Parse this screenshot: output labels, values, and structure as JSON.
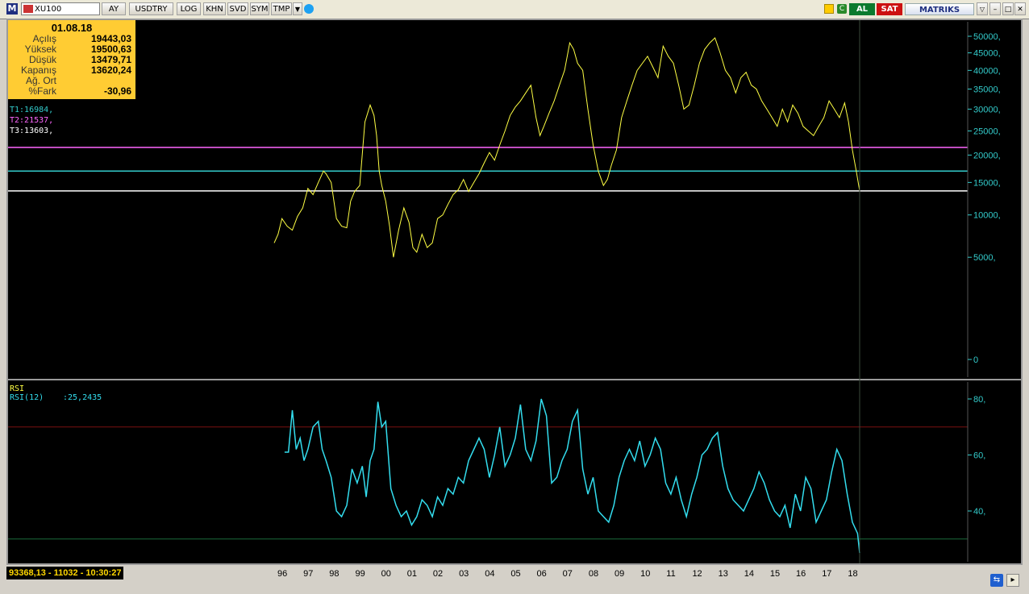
{
  "toolbar": {
    "logo": "M",
    "symbol": "XU100",
    "buttons": [
      "AY",
      "USDTRY",
      "LOG",
      "KHN",
      "SVD",
      "SYM",
      "TMP"
    ],
    "al_label": "AL",
    "sat_label": "SAT",
    "brand": "MATRIKS"
  },
  "info": {
    "date": "01.08.18",
    "rows": [
      {
        "label": "Açılış",
        "value": "19443,03"
      },
      {
        "label": "Yüksek",
        "value": "19500,63"
      },
      {
        "label": "Düşük",
        "value": "13479,71"
      },
      {
        "label": "Kapanış",
        "value": "13620,24"
      },
      {
        "label": "Ağ. Ort",
        "value": ""
      },
      {
        "label": "%Fark",
        "value": "-30,96"
      }
    ]
  },
  "trend_lines": [
    {
      "label": "T1:16984,",
      "value": 16984,
      "color": "#33cccc"
    },
    {
      "label": "T2:21537,",
      "value": 21537,
      "color": "#ff66ff"
    },
    {
      "label": "T3:13603,",
      "value": 13603,
      "color": "#ffffff"
    }
  ],
  "rsi": {
    "title": "RSI",
    "label": "RSI(12)",
    "value": ":25,2435",
    "upper": 70,
    "lower": 30
  },
  "status": {
    "text": "93368,13 - 11032 - 10:30:27"
  },
  "chart_data": [
    {
      "type": "line",
      "scale": "sqrt",
      "title": "",
      "y_ticks": [
        "50000,",
        "45000,",
        "40000,",
        "35000,",
        "30000,",
        "25000,",
        "20000,",
        "15000,",
        "10000,",
        "5000,",
        "0"
      ],
      "y_tick_values": [
        50000,
        45000,
        40000,
        35000,
        30000,
        25000,
        20000,
        15000,
        10000,
        5000,
        0
      ],
      "x_labels": [
        "96",
        "97",
        "98",
        "99",
        "00",
        "01",
        "02",
        "03",
        "04",
        "05",
        "06",
        "07",
        "08",
        "09",
        "10",
        "11",
        "12",
        "13",
        "14",
        "15",
        "16",
        "17",
        "18"
      ],
      "x_label_values": [
        1996,
        1997,
        1998,
        1999,
        2000,
        2001,
        2002,
        2003,
        2004,
        2005,
        2006,
        2007,
        2008,
        2009,
        2010,
        2011,
        2012,
        2013,
        2014,
        2015,
        2016,
        2017,
        2018
      ],
      "series": [
        {
          "color": "#ffff44",
          "x": [
            1996.0,
            1996.15,
            1996.3,
            1996.5,
            1996.7,
            1996.9,
            1997.1,
            1997.3,
            1997.5,
            1997.7,
            1997.9,
            1998.0,
            1998.2,
            1998.4,
            1998.6,
            1998.8,
            1998.95,
            1999.1,
            1999.3,
            1999.5,
            1999.7,
            1999.85,
            1999.95,
            2000.05,
            2000.15,
            2000.3,
            2000.45,
            2000.6,
            2000.8,
            2001.0,
            2001.2,
            2001.35,
            2001.5,
            2001.7,
            2001.9,
            2002.1,
            2002.3,
            2002.5,
            2002.7,
            2002.9,
            2003.1,
            2003.3,
            2003.5,
            2003.7,
            2003.9,
            2004.1,
            2004.3,
            2004.5,
            2004.7,
            2004.9,
            2005.1,
            2005.3,
            2005.5,
            2005.7,
            2005.9,
            2006.1,
            2006.25,
            2006.4,
            2006.6,
            2006.8,
            2007.0,
            2007.2,
            2007.4,
            2007.55,
            2007.7,
            2007.9,
            2008.1,
            2008.3,
            2008.5,
            2008.7,
            2008.85,
            2009.0,
            2009.2,
            2009.4,
            2009.6,
            2009.8,
            2010.0,
            2010.2,
            2010.4,
            2010.6,
            2010.8,
            2011.0,
            2011.2,
            2011.4,
            2011.6,
            2011.8,
            2012.0,
            2012.2,
            2012.4,
            2012.6,
            2012.8,
            2013.0,
            2013.2,
            2013.4,
            2013.6,
            2013.8,
            2014.0,
            2014.2,
            2014.4,
            2014.6,
            2014.8,
            2015.0,
            2015.2,
            2015.4,
            2015.6,
            2015.8,
            2016.0,
            2016.2,
            2016.4,
            2016.6,
            2016.8,
            2017.0,
            2017.2,
            2017.4,
            2017.6,
            2017.8,
            2018.0,
            2018.15,
            2018.3,
            2018.45,
            2018.58
          ],
          "y": [
            6500,
            7500,
            9500,
            8500,
            8000,
            9800,
            11000,
            14000,
            13000,
            15000,
            17000,
            16500,
            15000,
            9500,
            8500,
            8300,
            12000,
            13500,
            14500,
            27000,
            31000,
            28500,
            24000,
            17000,
            14500,
            12000,
            8500,
            5000,
            8000,
            11000,
            9000,
            6000,
            5500,
            7500,
            6000,
            6500,
            9500,
            10000,
            11500,
            13000,
            13800,
            15500,
            13500,
            15000,
            16500,
            18500,
            20500,
            19000,
            22000,
            25000,
            28500,
            30500,
            32000,
            34000,
            36000,
            28000,
            24000,
            26000,
            29000,
            32000,
            36000,
            40000,
            48000,
            46000,
            42000,
            40000,
            30000,
            22000,
            17000,
            14500,
            15500,
            18000,
            21000,
            28000,
            32000,
            36000,
            40000,
            42000,
            44000,
            41000,
            38000,
            47000,
            44000,
            42000,
            36000,
            30000,
            31000,
            36000,
            42000,
            46000,
            48000,
            49500,
            45000,
            40000,
            38000,
            34000,
            38000,
            39500,
            36000,
            35000,
            32000,
            30000,
            28000,
            26000,
            30000,
            27000,
            31000,
            29000,
            26000,
            25000,
            24000,
            26000,
            28000,
            32000,
            30000,
            28000,
            31500,
            27000,
            21000,
            17000,
            13600
          ]
        }
      ]
    },
    {
      "type": "line",
      "title": "RSI",
      "y_ticks": [
        "80,",
        "60,",
        "40,"
      ],
      "y_tick_values": [
        80,
        60,
        40
      ],
      "ylim": [
        20,
        85
      ],
      "series": [
        {
          "name": "RSI(12)",
          "color": "#33ddee",
          "x": [
            1996.4,
            1996.55,
            1996.7,
            1996.85,
            1997.0,
            1997.15,
            1997.3,
            1997.5,
            1997.7,
            1997.85,
            1998.0,
            1998.2,
            1998.4,
            1998.6,
            1998.8,
            1999.0,
            1999.2,
            1999.4,
            1999.55,
            1999.7,
            1999.85,
            2000.0,
            2000.15,
            2000.3,
            2000.5,
            2000.7,
            2000.9,
            2001.1,
            2001.3,
            2001.5,
            2001.7,
            2001.9,
            2002.1,
            2002.3,
            2002.5,
            2002.7,
            2002.9,
            2003.1,
            2003.3,
            2003.5,
            2003.7,
            2003.9,
            2004.1,
            2004.3,
            2004.5,
            2004.7,
            2004.9,
            2005.1,
            2005.3,
            2005.5,
            2005.7,
            2005.9,
            2006.1,
            2006.3,
            2006.5,
            2006.7,
            2006.9,
            2007.1,
            2007.3,
            2007.5,
            2007.7,
            2007.9,
            2008.1,
            2008.3,
            2008.5,
            2008.7,
            2008.9,
            2009.1,
            2009.3,
            2009.5,
            2009.7,
            2009.9,
            2010.1,
            2010.3,
            2010.5,
            2010.7,
            2010.9,
            2011.1,
            2011.3,
            2011.5,
            2011.7,
            2011.9,
            2012.1,
            2012.3,
            2012.5,
            2012.7,
            2012.9,
            2013.1,
            2013.3,
            2013.5,
            2013.7,
            2013.9,
            2014.1,
            2014.3,
            2014.5,
            2014.7,
            2014.9,
            2015.1,
            2015.3,
            2015.5,
            2015.7,
            2015.9,
            2016.1,
            2016.3,
            2016.5,
            2016.7,
            2016.9,
            2017.1,
            2017.3,
            2017.5,
            2017.7,
            2017.9,
            2018.1,
            2018.3,
            2018.5,
            2018.58
          ],
          "y": [
            61,
            61,
            76,
            62,
            66,
            58,
            62,
            70,
            72,
            62,
            58,
            52,
            40,
            38,
            42,
            55,
            50,
            56,
            45,
            58,
            62,
            79,
            70,
            72,
            48,
            42,
            38,
            40,
            35,
            38,
            44,
            42,
            38,
            45,
            42,
            48,
            46,
            52,
            50,
            58,
            62,
            66,
            62,
            52,
            60,
            70,
            56,
            60,
            66,
            78,
            62,
            58,
            65,
            80,
            74,
            50,
            52,
            58,
            62,
            72,
            76,
            55,
            46,
            52,
            40,
            38,
            36,
            42,
            52,
            58,
            62,
            58,
            65,
            56,
            60,
            66,
            62,
            50,
            46,
            52,
            44,
            38,
            46,
            52,
            60,
            62,
            66,
            68,
            56,
            48,
            44,
            42,
            40,
            44,
            48,
            54,
            50,
            44,
            40,
            38,
            42,
            34,
            46,
            40,
            52,
            48,
            36,
            40,
            44,
            54,
            62,
            58,
            46,
            36,
            32,
            25
          ]
        }
      ]
    }
  ]
}
